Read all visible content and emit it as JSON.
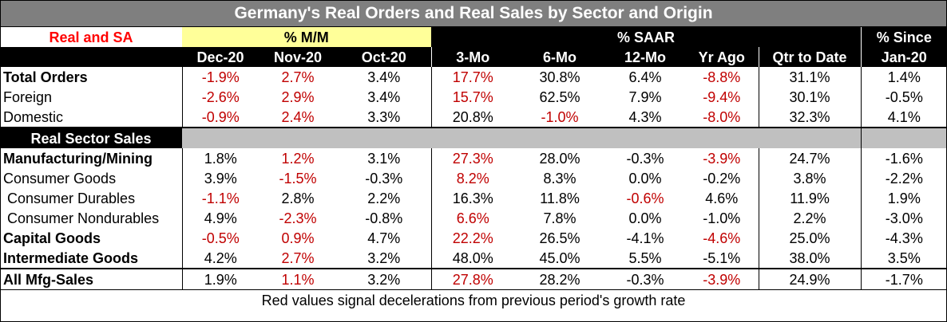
{
  "title": "Germany's Real Orders and Real Sales by Sector and Origin",
  "header": {
    "corner_label": "Real and SA",
    "group_mm": "% M/M",
    "group_saar": "% SAAR",
    "group_since": "% Since",
    "columns": [
      "Dec-20",
      "Nov-20",
      "Oct-20",
      "3-Mo",
      "6-Mo",
      "12-Mo",
      "Yr Ago",
      "Qtr to Date",
      "Jan-20"
    ]
  },
  "sections": {
    "real_sector_sales": "Real Sector Sales"
  },
  "rows": [
    {
      "label": "Total Orders",
      "bold": true,
      "values": [
        {
          "v": "-1.9%",
          "red": true
        },
        {
          "v": "2.7%",
          "red": true
        },
        {
          "v": "3.4%",
          "red": false
        },
        {
          "v": "17.7%",
          "red": true
        },
        {
          "v": "30.8%",
          "red": false
        },
        {
          "v": "6.4%",
          "red": false
        },
        {
          "v": "-8.8%",
          "red": true
        },
        {
          "v": "31.1%",
          "red": false
        },
        {
          "v": "1.4%",
          "red": false
        }
      ]
    },
    {
      "label": "Foreign",
      "bold": false,
      "values": [
        {
          "v": "-2.6%",
          "red": true
        },
        {
          "v": "2.9%",
          "red": true
        },
        {
          "v": "3.4%",
          "red": false
        },
        {
          "v": "15.7%",
          "red": true
        },
        {
          "v": "62.5%",
          "red": false
        },
        {
          "v": "7.9%",
          "red": false
        },
        {
          "v": "-9.4%",
          "red": true
        },
        {
          "v": "30.1%",
          "red": false
        },
        {
          "v": "-0.5%",
          "red": false
        }
      ]
    },
    {
      "label": "Domestic",
      "bold": false,
      "values": [
        {
          "v": "-0.9%",
          "red": true
        },
        {
          "v": "2.4%",
          "red": true
        },
        {
          "v": "3.3%",
          "red": false
        },
        {
          "v": "20.8%",
          "red": false
        },
        {
          "v": "-1.0%",
          "red": true
        },
        {
          "v": "4.3%",
          "red": false
        },
        {
          "v": "-8.0%",
          "red": true
        },
        {
          "v": "32.3%",
          "red": false
        },
        {
          "v": "4.1%",
          "red": false
        }
      ]
    },
    {
      "label": "Manufacturing/Mining",
      "bold": true,
      "values": [
        {
          "v": "1.8%",
          "red": false
        },
        {
          "v": "1.2%",
          "red": true
        },
        {
          "v": "3.1%",
          "red": false
        },
        {
          "v": "27.3%",
          "red": true
        },
        {
          "v": "28.0%",
          "red": false
        },
        {
          "v": "-0.3%",
          "red": false
        },
        {
          "v": "-3.9%",
          "red": true
        },
        {
          "v": "24.7%",
          "red": false
        },
        {
          "v": "-1.6%",
          "red": false
        }
      ]
    },
    {
      "label": "Consumer Goods",
      "bold": false,
      "values": [
        {
          "v": "3.9%",
          "red": false
        },
        {
          "v": "-1.5%",
          "red": true
        },
        {
          "v": "-0.3%",
          "red": false
        },
        {
          "v": "8.2%",
          "red": true
        },
        {
          "v": "8.3%",
          "red": false
        },
        {
          "v": "0.0%",
          "red": false
        },
        {
          "v": "-0.2%",
          "red": false
        },
        {
          "v": "3.8%",
          "red": false
        },
        {
          "v": "-2.2%",
          "red": false
        }
      ]
    },
    {
      "label": " Consumer Durables",
      "bold": false,
      "values": [
        {
          "v": "-1.1%",
          "red": true
        },
        {
          "v": "2.8%",
          "red": false
        },
        {
          "v": "2.2%",
          "red": false
        },
        {
          "v": "16.3%",
          "red": false
        },
        {
          "v": "11.8%",
          "red": false
        },
        {
          "v": "-0.6%",
          "red": true
        },
        {
          "v": "4.6%",
          "red": false
        },
        {
          "v": "11.9%",
          "red": false
        },
        {
          "v": "1.9%",
          "red": false
        }
      ]
    },
    {
      "label": " Consumer Nondurables",
      "bold": false,
      "values": [
        {
          "v": "4.9%",
          "red": false
        },
        {
          "v": "-2.3%",
          "red": true
        },
        {
          "v": "-0.8%",
          "red": false
        },
        {
          "v": "6.6%",
          "red": true
        },
        {
          "v": "7.8%",
          "red": false
        },
        {
          "v": "0.0%",
          "red": false
        },
        {
          "v": "-1.0%",
          "red": false
        },
        {
          "v": "2.2%",
          "red": false
        },
        {
          "v": "-3.0%",
          "red": false
        }
      ]
    },
    {
      "label": "Capital Goods",
      "bold": true,
      "values": [
        {
          "v": "-0.5%",
          "red": true
        },
        {
          "v": "0.9%",
          "red": true
        },
        {
          "v": "4.7%",
          "red": false
        },
        {
          "v": "22.2%",
          "red": true
        },
        {
          "v": "26.5%",
          "red": false
        },
        {
          "v": "-4.1%",
          "red": false
        },
        {
          "v": "-4.6%",
          "red": true
        },
        {
          "v": "25.0%",
          "red": false
        },
        {
          "v": "-4.3%",
          "red": false
        }
      ]
    },
    {
      "label": "Intermediate Goods",
      "bold": true,
      "values": [
        {
          "v": "4.2%",
          "red": false
        },
        {
          "v": "2.7%",
          "red": true
        },
        {
          "v": "3.2%",
          "red": false
        },
        {
          "v": "48.0%",
          "red": false
        },
        {
          "v": "45.0%",
          "red": false
        },
        {
          "v": "5.5%",
          "red": false
        },
        {
          "v": "-5.1%",
          "red": false
        },
        {
          "v": "38.0%",
          "red": false
        },
        {
          "v": "3.5%",
          "red": false
        }
      ]
    },
    {
      "label": "All Mfg-Sales",
      "bold": true,
      "values": [
        {
          "v": "1.9%",
          "red": false
        },
        {
          "v": "1.1%",
          "red": true
        },
        {
          "v": "3.2%",
          "red": false
        },
        {
          "v": "27.8%",
          "red": true
        },
        {
          "v": "28.2%",
          "red": false
        },
        {
          "v": "-0.3%",
          "red": false
        },
        {
          "v": "-3.9%",
          "red": true
        },
        {
          "v": "24.9%",
          "red": false
        },
        {
          "v": "-1.7%",
          "red": false
        }
      ]
    }
  ],
  "footer_note": "Red values signal decelerations from previous period's growth rate",
  "colors": {
    "title_bg": "#7f7f7f",
    "header_yellow": "#ffff99",
    "header_black": "#000000",
    "section_grey": "#c0c0c0",
    "deceleration_red": "#c00000",
    "corner_label_red": "#ff0000"
  }
}
